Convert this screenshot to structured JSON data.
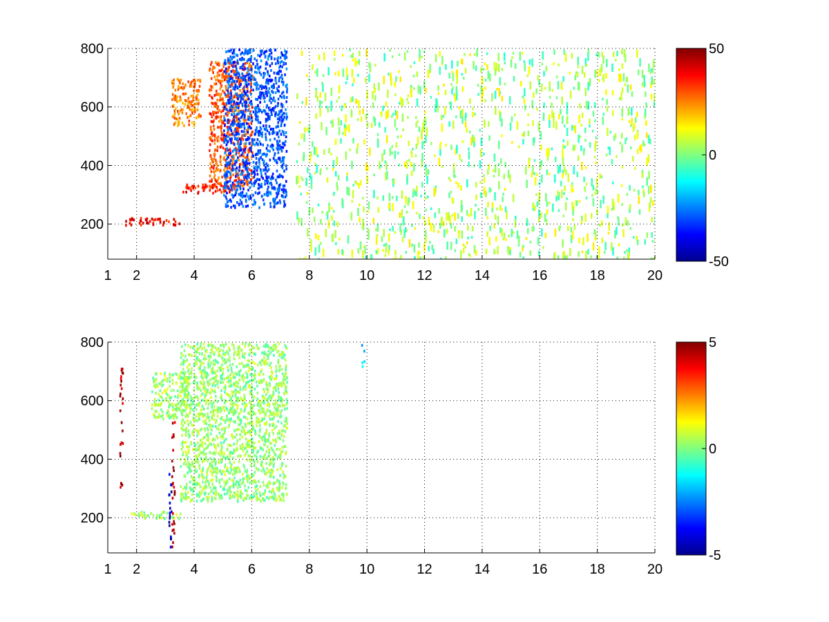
{
  "chart_data": [
    {
      "type": "heatmap",
      "title": "",
      "xlabel": "",
      "ylabel": "",
      "xlim": [
        1,
        20
      ],
      "ylim": [
        80,
        800
      ],
      "xticks": [
        1,
        2,
        4,
        6,
        8,
        10,
        12,
        14,
        16,
        18,
        20
      ],
      "yticks": [
        200,
        400,
        600,
        800
      ],
      "grid": true,
      "colormap": "jet",
      "clim": [
        -50,
        50
      ],
      "colorbar_ticks": [
        -50,
        0,
        50
      ],
      "colorbar_tick_labels": [
        "-50",
        "0",
        "50"
      ],
      "features": [
        {
          "desc": "positive band",
          "x": [
            1.6,
            3.5
          ],
          "y": [
            200,
            225
          ],
          "value": 38
        },
        {
          "desc": "positive ridge",
          "x": [
            3.5,
            5.5
          ],
          "y": [
            310,
            340
          ],
          "value": 35
        },
        {
          "desc": "positive curve",
          "x": [
            4.5,
            6.0
          ],
          "y": [
            330,
            760
          ],
          "value": 30
        },
        {
          "desc": "negative region",
          "x": [
            5.0,
            7.2
          ],
          "y": [
            260,
            800
          ],
          "value": -30
        },
        {
          "desc": "positive patch",
          "x": [
            3.2,
            4.2
          ],
          "y": [
            540,
            700
          ],
          "value": 25
        },
        {
          "desc": "sparse noise",
          "x": [
            7.5,
            20
          ],
          "y": [
            80,
            800
          ],
          "value": 3
        }
      ]
    },
    {
      "type": "heatmap",
      "title": "",
      "xlabel": "",
      "ylabel": "",
      "xlim": [
        1,
        20
      ],
      "ylim": [
        80,
        800
      ],
      "xticks": [
        1,
        2,
        4,
        6,
        8,
        10,
        12,
        14,
        16,
        18,
        20
      ],
      "yticks": [
        200,
        400,
        600,
        800
      ],
      "grid": true,
      "colormap": "jet",
      "clim": [
        -5,
        5
      ],
      "colorbar_ticks": [
        -5,
        0,
        5
      ],
      "colorbar_tick_labels": [
        "-5",
        "0",
        "5"
      ],
      "features": [
        {
          "desc": "low band",
          "x": [
            1.8,
            3.5
          ],
          "y": [
            200,
            225
          ],
          "value": 0.4
        },
        {
          "desc": "main region",
          "x": [
            3.5,
            7.2
          ],
          "y": [
            260,
            800
          ],
          "value": 0.2
        },
        {
          "desc": "upper patch",
          "x": [
            2.5,
            3.8
          ],
          "y": [
            540,
            700
          ],
          "value": 0.3
        },
        {
          "desc": "outlier streak",
          "x": [
            3.1,
            3.2
          ],
          "y": [
            100,
            400
          ],
          "value": -4.5
        },
        {
          "desc": "outlier streak",
          "x": [
            3.2,
            3.3
          ],
          "y": [
            100,
            550
          ],
          "value": 4.5
        },
        {
          "desc": "outlier streak",
          "x": [
            1.4,
            1.5
          ],
          "y": [
            300,
            740
          ],
          "value": 4.5
        },
        {
          "desc": "outlier streak",
          "x": [
            9.8,
            9.9
          ],
          "y": [
            720,
            800
          ],
          "value": -1.8
        }
      ]
    }
  ]
}
